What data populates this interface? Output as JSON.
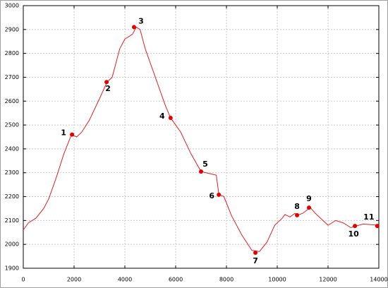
{
  "chart_data": {
    "type": "line",
    "xlim": [
      0,
      14000
    ],
    "ylim": [
      1900,
      3000
    ],
    "xticks": [
      0,
      2000,
      4000,
      6000,
      8000,
      10000,
      12000,
      14000
    ],
    "yticks": [
      1900,
      2000,
      2100,
      2200,
      2300,
      2400,
      2500,
      2600,
      2700,
      2800,
      2900,
      3000
    ],
    "grid": true,
    "series": [
      {
        "color": "#e02020",
        "x": [
          0,
          200,
          500,
          800,
          1000,
          1300,
          1600,
          1900,
          2100,
          2300,
          2600,
          3000,
          3300,
          3500,
          3800,
          4000,
          4300,
          4450,
          4600,
          4800,
          5200,
          5600,
          5800,
          6200,
          6600,
          7000,
          7600,
          7700,
          7900,
          8200,
          8600,
          9000,
          9300,
          9600,
          9900,
          10200,
          10300,
          10500,
          10700,
          10800,
          11000,
          11300,
          11500,
          11800,
          12000,
          12300,
          12600,
          12900,
          13100,
          13400,
          14000
        ],
        "values": [
          2060,
          2090,
          2110,
          2150,
          2190,
          2280,
          2380,
          2460,
          2450,
          2470,
          2520,
          2610,
          2680,
          2700,
          2820,
          2860,
          2880,
          2910,
          2900,
          2820,
          2700,
          2580,
          2530,
          2470,
          2380,
          2305,
          2290,
          2210,
          2200,
          2120,
          2040,
          1975,
          1970,
          2010,
          2080,
          2110,
          2125,
          2115,
          2130,
          2122,
          2130,
          2154,
          2130,
          2100,
          2080,
          2100,
          2090,
          2070,
          2077,
          2085,
          2080
        ]
      },
      {
        "type": "scatter",
        "color": "#e00000",
        "x": [
          1920,
          3280,
          4360,
          5800,
          7000,
          7700,
          9140,
          10780,
          11250,
          13060,
          13940
        ],
        "values": [
          2460,
          2680,
          2910,
          2530,
          2305,
          2208,
          1965,
          2122,
          2154,
          2077,
          2077
        ],
        "point_labels": [
          "1",
          "2",
          "3",
          "4",
          "5",
          "6",
          "7",
          "8",
          "9",
          "10",
          "11"
        ]
      }
    ]
  }
}
